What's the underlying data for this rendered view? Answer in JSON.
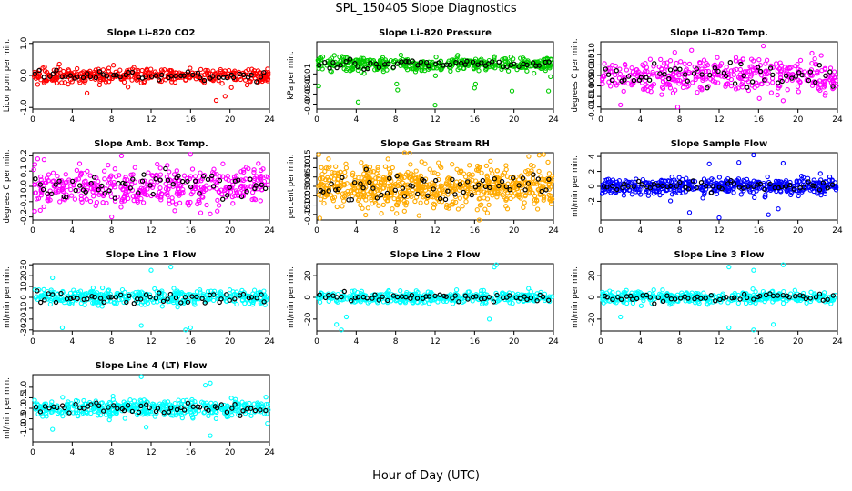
{
  "figure": {
    "title": "SPL_150405  Slope Diagnostics",
    "xlabel": "Hour of Day (UTC)"
  },
  "chart_data": [
    {
      "type": "scatter",
      "title": "Slope Li–820 CO2",
      "ylabel": "Licor ppm per min.",
      "xlim": [
        0,
        24
      ],
      "ylim": [
        -1.05,
        1.05
      ],
      "xticks": [
        0,
        4,
        8,
        12,
        16,
        20,
        24
      ],
      "xtick_labels": [
        "0",
        "4",
        "8",
        "12",
        "16",
        "20",
        "24"
      ],
      "yticks": [
        -1,
        0,
        1
      ],
      "ytick_labels": [
        "-1.0",
        "0.0",
        "1.0"
      ],
      "color": "#ff0000",
      "spread": 0.12,
      "outliers": [
        [
          0.5,
          -0.28
        ],
        [
          5.5,
          -0.55
        ],
        [
          18.6,
          -0.78
        ],
        [
          19.5,
          -0.65
        ]
      ],
      "n": 380,
      "black_n": 55,
      "grid": false
    },
    {
      "type": "scatter",
      "title": "Slope Li–820 Pressure",
      "ylabel": "kPa per min.",
      "xlim": [
        0,
        24
      ],
      "ylim": [
        -0.045,
        0.022
      ],
      "xticks": [
        0,
        4,
        8,
        12,
        16,
        20,
        24
      ],
      "xtick_labels": [
        "0",
        "4",
        "8",
        "12",
        "16",
        "20",
        "24"
      ],
      "yticks": [
        -0.04,
        -0.03,
        -0.02,
        -0.01
      ],
      "ytick_labels": [
        "-0.04",
        "-0.03",
        "-0.02",
        "-0.01"
      ],
      "color": "#00cc00",
      "spread": 0.004,
      "outliers": [
        [
          0.2,
          -0.022
        ],
        [
          4.2,
          -0.038
        ],
        [
          8.2,
          -0.026
        ],
        [
          8.1,
          -0.02
        ],
        [
          12,
          -0.041
        ],
        [
          16,
          -0.024
        ],
        [
          16.1,
          -0.02
        ],
        [
          19.8,
          -0.027
        ],
        [
          23.5,
          -0.027
        ]
      ],
      "n": 420,
      "black_n": 55,
      "grid": false
    },
    {
      "type": "scatter",
      "title": "Slope Li–820 Temp.",
      "ylabel": "degrees C per min.",
      "xlim": [
        0,
        24
      ],
      "ylim": [
        -0.016,
        0.016
      ],
      "xticks": [
        0,
        4,
        8,
        12,
        16,
        20,
        24
      ],
      "xtick_labels": [
        "0",
        "4",
        "8",
        "12",
        "16",
        "20",
        "24"
      ],
      "yticks": [
        -0.015,
        -0.01,
        -0.005,
        0,
        0.005,
        0.01
      ],
      "ytick_labels": [
        "-0.015",
        "-0.010",
        "-0.005",
        "0.000",
        "0.005",
        "0.010"
      ],
      "color": "#ff00ff",
      "spread": 0.0045,
      "outliers": [
        [
          2,
          -0.014
        ],
        [
          7.8,
          -0.015
        ],
        [
          7.5,
          0.011
        ],
        [
          9.2,
          0.012
        ],
        [
          18.5,
          -0.012
        ]
      ],
      "n": 380,
      "black_n": 55,
      "grid": false
    },
    {
      "type": "scatter",
      "title": "Slope Amb. Box Temp.",
      "ylabel": "degrees C per min.",
      "xlim": [
        0,
        24
      ],
      "ylim": [
        -0.22,
        0.22
      ],
      "xticks": [
        0,
        4,
        8,
        12,
        16,
        20,
        24
      ],
      "xtick_labels": [
        "0",
        "4",
        "8",
        "12",
        "16",
        "20",
        "24"
      ],
      "yticks": [
        -0.2,
        -0.1,
        0,
        0.1,
        0.2
      ],
      "ytick_labels": [
        "-0.2",
        "-0.1",
        "0.0",
        "0.1",
        "0.2"
      ],
      "color": "#ff00ff",
      "spread": 0.075,
      "outliers": [
        [
          0.5,
          0.18
        ],
        [
          9,
          0.2
        ],
        [
          16,
          0.21
        ],
        [
          8,
          -0.2
        ],
        [
          18,
          -0.18
        ]
      ],
      "n": 420,
      "black_n": 60,
      "grid": false
    },
    {
      "type": "scatter",
      "title": "Slope Gas Stream RH",
      "ylabel": "percent per min.",
      "xlim": [
        0,
        24
      ],
      "ylim": [
        -0.18,
        0.18
      ],
      "xticks": [
        0,
        4,
        8,
        12,
        16,
        20,
        24
      ],
      "xtick_labels": [
        "0",
        "4",
        "8",
        "12",
        "16",
        "20",
        "24"
      ],
      "yticks": [
        -0.15,
        -0.1,
        -0.05,
        0,
        0.05,
        0.1,
        0.15
      ],
      "ytick_labels": [
        "-0.15",
        "-0.10",
        "-0.05",
        "0.00",
        "0.05",
        "0.10",
        "0.15"
      ],
      "color": "#ffaa00",
      "spread": 0.06,
      "outliers": [
        [
          0.2,
          0.17
        ],
        [
          0.3,
          -0.17
        ],
        [
          21.5,
          0.16
        ],
        [
          23,
          0.17
        ]
      ],
      "n": 700,
      "black_n": 60,
      "grid": false
    },
    {
      "type": "scatter",
      "title": "Slope Sample Flow",
      "ylabel": "ml/min per min.",
      "xlim": [
        0,
        24
      ],
      "ylim": [
        -4.5,
        4.5
      ],
      "xticks": [
        0,
        4,
        8,
        12,
        16,
        20,
        24
      ],
      "xtick_labels": [
        "0",
        "4",
        "8",
        "12",
        "16",
        "20",
        "24"
      ],
      "yticks": [
        -2,
        0,
        2,
        4
      ],
      "ytick_labels": [
        "-2",
        "0",
        "2",
        "4"
      ],
      "color": "#0000ff",
      "spread": 0.6,
      "outliers": [
        [
          11,
          3
        ],
        [
          14,
          3.2
        ],
        [
          15.5,
          4.2
        ],
        [
          18.5,
          3.1
        ],
        [
          9,
          -3.5
        ],
        [
          12,
          -4.2
        ],
        [
          17,
          -3.8
        ],
        [
          18,
          -3
        ]
      ],
      "n": 460,
      "black_n": 55,
      "grid": false
    },
    {
      "type": "scatter",
      "title": "Slope Line 1 Flow",
      "ylabel": "ml/min per min.",
      "xlim": [
        0,
        24
      ],
      "ylim": [
        -31,
        31
      ],
      "xticks": [
        0,
        4,
        8,
        12,
        16,
        20,
        24
      ],
      "xtick_labels": [
        "0",
        "4",
        "8",
        "12",
        "16",
        "20",
        "24"
      ],
      "yticks": [
        -30,
        -20,
        -10,
        0,
        10,
        20,
        30
      ],
      "ytick_labels": [
        "-30",
        "-20",
        "-10",
        "0",
        "10",
        "20",
        "30"
      ],
      "color": "#00ffff",
      "spread": 4,
      "outliers": [
        [
          3,
          -28
        ],
        [
          12,
          25
        ],
        [
          14,
          28
        ],
        [
          15.5,
          -30
        ],
        [
          16,
          -28
        ],
        [
          11,
          -26
        ],
        [
          2,
          18
        ]
      ],
      "n": 380,
      "black_n": 55,
      "grid": false
    },
    {
      "type": "scatter",
      "title": "Slope Line 2 Flow",
      "ylabel": "ml/min per min.",
      "xlim": [
        0,
        24
      ],
      "ylim": [
        -31,
        31
      ],
      "xticks": [
        0,
        4,
        8,
        12,
        16,
        20,
        24
      ],
      "xtick_labels": [
        "0",
        "4",
        "8",
        "12",
        "16",
        "20",
        "24"
      ],
      "yticks": [
        -20,
        0,
        20
      ],
      "ytick_labels": [
        "-20",
        "0",
        "20"
      ],
      "color": "#00ffff",
      "spread": 3,
      "outliers": [
        [
          2,
          -25
        ],
        [
          2.5,
          -30
        ],
        [
          18,
          28
        ],
        [
          18.2,
          30
        ],
        [
          17.5,
          -20
        ],
        [
          3,
          -18
        ]
      ],
      "n": 380,
      "black_n": 55,
      "grid": false
    },
    {
      "type": "scatter",
      "title": "Slope Line 3 Flow",
      "ylabel": "ml/min per min.",
      "xlim": [
        0,
        24
      ],
      "ylim": [
        -31,
        31
      ],
      "xticks": [
        0,
        4,
        8,
        12,
        16,
        20,
        24
      ],
      "xtick_labels": [
        "0",
        "4",
        "8",
        "12",
        "16",
        "20",
        "24"
      ],
      "yticks": [
        -20,
        0,
        20
      ],
      "ytick_labels": [
        "-20",
        "0",
        "20"
      ],
      "color": "#00ffff",
      "spread": 3,
      "outliers": [
        [
          13,
          28
        ],
        [
          15.5,
          25
        ],
        [
          18.5,
          30
        ],
        [
          13,
          -28
        ],
        [
          15.5,
          -30
        ],
        [
          17.5,
          -25
        ],
        [
          2,
          -18
        ]
      ],
      "n": 380,
      "black_n": 55,
      "grid": false
    },
    {
      "type": "scatter",
      "title": "Slope Line 4 (LT) Flow",
      "ylabel": "ml/min per min.",
      "xlim": [
        0,
        24
      ],
      "ylim": [
        -1.6,
        1.6
      ],
      "xticks": [
        0,
        4,
        8,
        12,
        16,
        20,
        24
      ],
      "xtick_labels": [
        "0",
        "4",
        "8",
        "12",
        "16",
        "20",
        "24"
      ],
      "yticks": [
        -1,
        -0.5,
        0,
        0.5,
        1
      ],
      "ytick_labels": [
        "-1.0",
        "-0.5",
        "0.0",
        "0.5",
        "1.0"
      ],
      "color": "#00ffff",
      "spread": 0.22,
      "outliers": [
        [
          11,
          1.5
        ],
        [
          17.5,
          1.1
        ],
        [
          18,
          1.2
        ],
        [
          2,
          -1
        ],
        [
          18,
          -1.3
        ],
        [
          11.5,
          -0.9
        ]
      ],
      "n": 420,
      "black_n": 55,
      "grid": false
    }
  ]
}
